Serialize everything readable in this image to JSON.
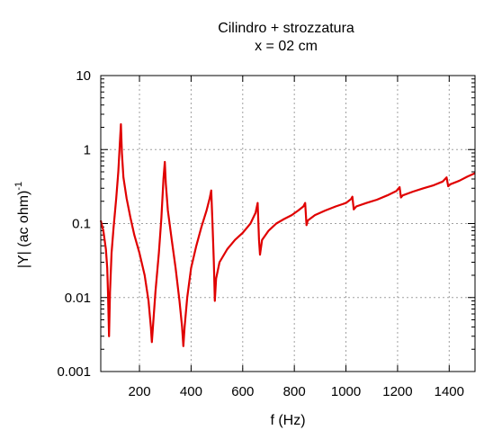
{
  "chart_data": {
    "type": "line",
    "title": "Cilindro + strozzatura",
    "subtitle": "x = 02 cm",
    "xlabel": "f (Hz)",
    "ylabel_main": "|Y| (ac ohm)",
    "ylabel_sup": "-1",
    "xlim": [
      50,
      1500
    ],
    "ylim": [
      0.001,
      10
    ],
    "yscale": "log",
    "grid": true,
    "x_ticks": [
      200,
      400,
      600,
      800,
      1000,
      1200,
      1400
    ],
    "x_tick_labels": [
      "200",
      "400",
      "600",
      "800",
      "1000",
      "1200",
      "1400"
    ],
    "y_ticks": [
      0.001,
      0.01,
      0.1,
      1,
      10
    ],
    "y_tick_labels": [
      "0.001",
      "0.01",
      "0.1",
      "1",
      "10"
    ],
    "series": [
      {
        "color": "#e00000",
        "points": [
          [
            50,
            0.11
          ],
          [
            60,
            0.08
          ],
          [
            70,
            0.045
          ],
          [
            75,
            0.025
          ],
          [
            78,
            0.012
          ],
          [
            82,
            0.003
          ],
          [
            86,
            0.012
          ],
          [
            92,
            0.04
          ],
          [
            100,
            0.09
          ],
          [
            110,
            0.22
          ],
          [
            118,
            0.5
          ],
          [
            124,
            1.2
          ],
          [
            128,
            2.2
          ],
          [
            132,
            0.9
          ],
          [
            138,
            0.42
          ],
          [
            150,
            0.22
          ],
          [
            165,
            0.12
          ],
          [
            180,
            0.07
          ],
          [
            200,
            0.04
          ],
          [
            220,
            0.02
          ],
          [
            235,
            0.009
          ],
          [
            244,
            0.004
          ],
          [
            248,
            0.0025
          ],
          [
            252,
            0.004
          ],
          [
            262,
            0.012
          ],
          [
            275,
            0.04
          ],
          [
            285,
            0.12
          ],
          [
            293,
            0.4
          ],
          [
            298,
            0.68
          ],
          [
            302,
            0.35
          ],
          [
            310,
            0.15
          ],
          [
            325,
            0.06
          ],
          [
            340,
            0.025
          ],
          [
            355,
            0.009
          ],
          [
            365,
            0.004
          ],
          [
            370,
            0.0022
          ],
          [
            375,
            0.004
          ],
          [
            385,
            0.01
          ],
          [
            400,
            0.025
          ],
          [
            420,
            0.05
          ],
          [
            440,
            0.09
          ],
          [
            460,
            0.15
          ],
          [
            472,
            0.22
          ],
          [
            478,
            0.28
          ],
          [
            483,
            0.1
          ],
          [
            488,
            0.03
          ],
          [
            492,
            0.009
          ],
          [
            497,
            0.018
          ],
          [
            510,
            0.03
          ],
          [
            540,
            0.045
          ],
          [
            570,
            0.06
          ],
          [
            600,
            0.075
          ],
          [
            630,
            0.1
          ],
          [
            650,
            0.14
          ],
          [
            658,
            0.19
          ],
          [
            663,
            0.06
          ],
          [
            667,
            0.038
          ],
          [
            675,
            0.06
          ],
          [
            700,
            0.08
          ],
          [
            730,
            0.1
          ],
          [
            760,
            0.115
          ],
          [
            790,
            0.13
          ],
          [
            815,
            0.15
          ],
          [
            835,
            0.17
          ],
          [
            842,
            0.19
          ],
          [
            847,
            0.095
          ],
          [
            852,
            0.11
          ],
          [
            880,
            0.13
          ],
          [
            920,
            0.15
          ],
          [
            960,
            0.17
          ],
          [
            1000,
            0.19
          ],
          [
            1020,
            0.215
          ],
          [
            1025,
            0.23
          ],
          [
            1030,
            0.155
          ],
          [
            1040,
            0.17
          ],
          [
            1080,
            0.19
          ],
          [
            1120,
            0.21
          ],
          [
            1160,
            0.24
          ],
          [
            1195,
            0.275
          ],
          [
            1208,
            0.31
          ],
          [
            1213,
            0.225
          ],
          [
            1220,
            0.24
          ],
          [
            1260,
            0.27
          ],
          [
            1300,
            0.3
          ],
          [
            1340,
            0.33
          ],
          [
            1375,
            0.37
          ],
          [
            1390,
            0.42
          ],
          [
            1396,
            0.32
          ],
          [
            1405,
            0.34
          ],
          [
            1440,
            0.38
          ],
          [
            1470,
            0.43
          ],
          [
            1500,
            0.48
          ]
        ]
      }
    ]
  }
}
